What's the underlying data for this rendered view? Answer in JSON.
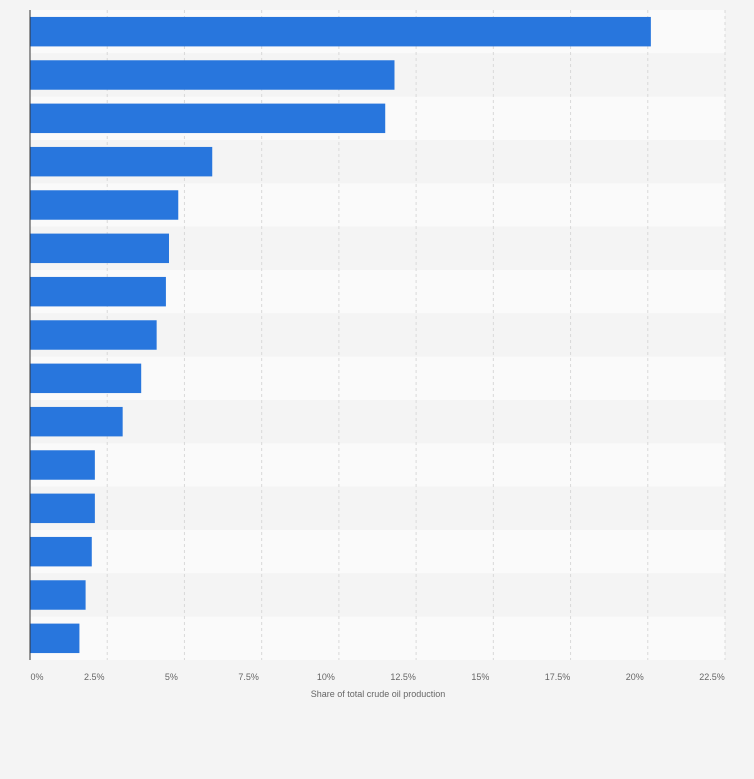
{
  "chart_data": {
    "type": "bar",
    "orientation": "horizontal",
    "categories": [
      "",
      "",
      "",
      "",
      "",
      "",
      "",
      "",
      "",
      "",
      "",
      "",
      "",
      "",
      ""
    ],
    "values": [
      20.1,
      11.8,
      11.5,
      5.9,
      4.8,
      4.5,
      4.4,
      4.1,
      3.6,
      3.0,
      2.1,
      2.1,
      2.0,
      1.8,
      1.6
    ],
    "xlim": [
      0,
      22.5
    ],
    "x_ticks": [
      "0%",
      "2.5%",
      "5%",
      "7.5%",
      "10%",
      "12.5%",
      "15%",
      "17.5%",
      "20%",
      "22.5%"
    ],
    "xlabel": "Share of total crude oil production",
    "ylabel": "",
    "title": "",
    "grid": "vertical dashed",
    "bar_color": "#2876dd",
    "row_band_colors": [
      "#f4f4f4",
      "#fafafa"
    ],
    "legend": "none"
  }
}
